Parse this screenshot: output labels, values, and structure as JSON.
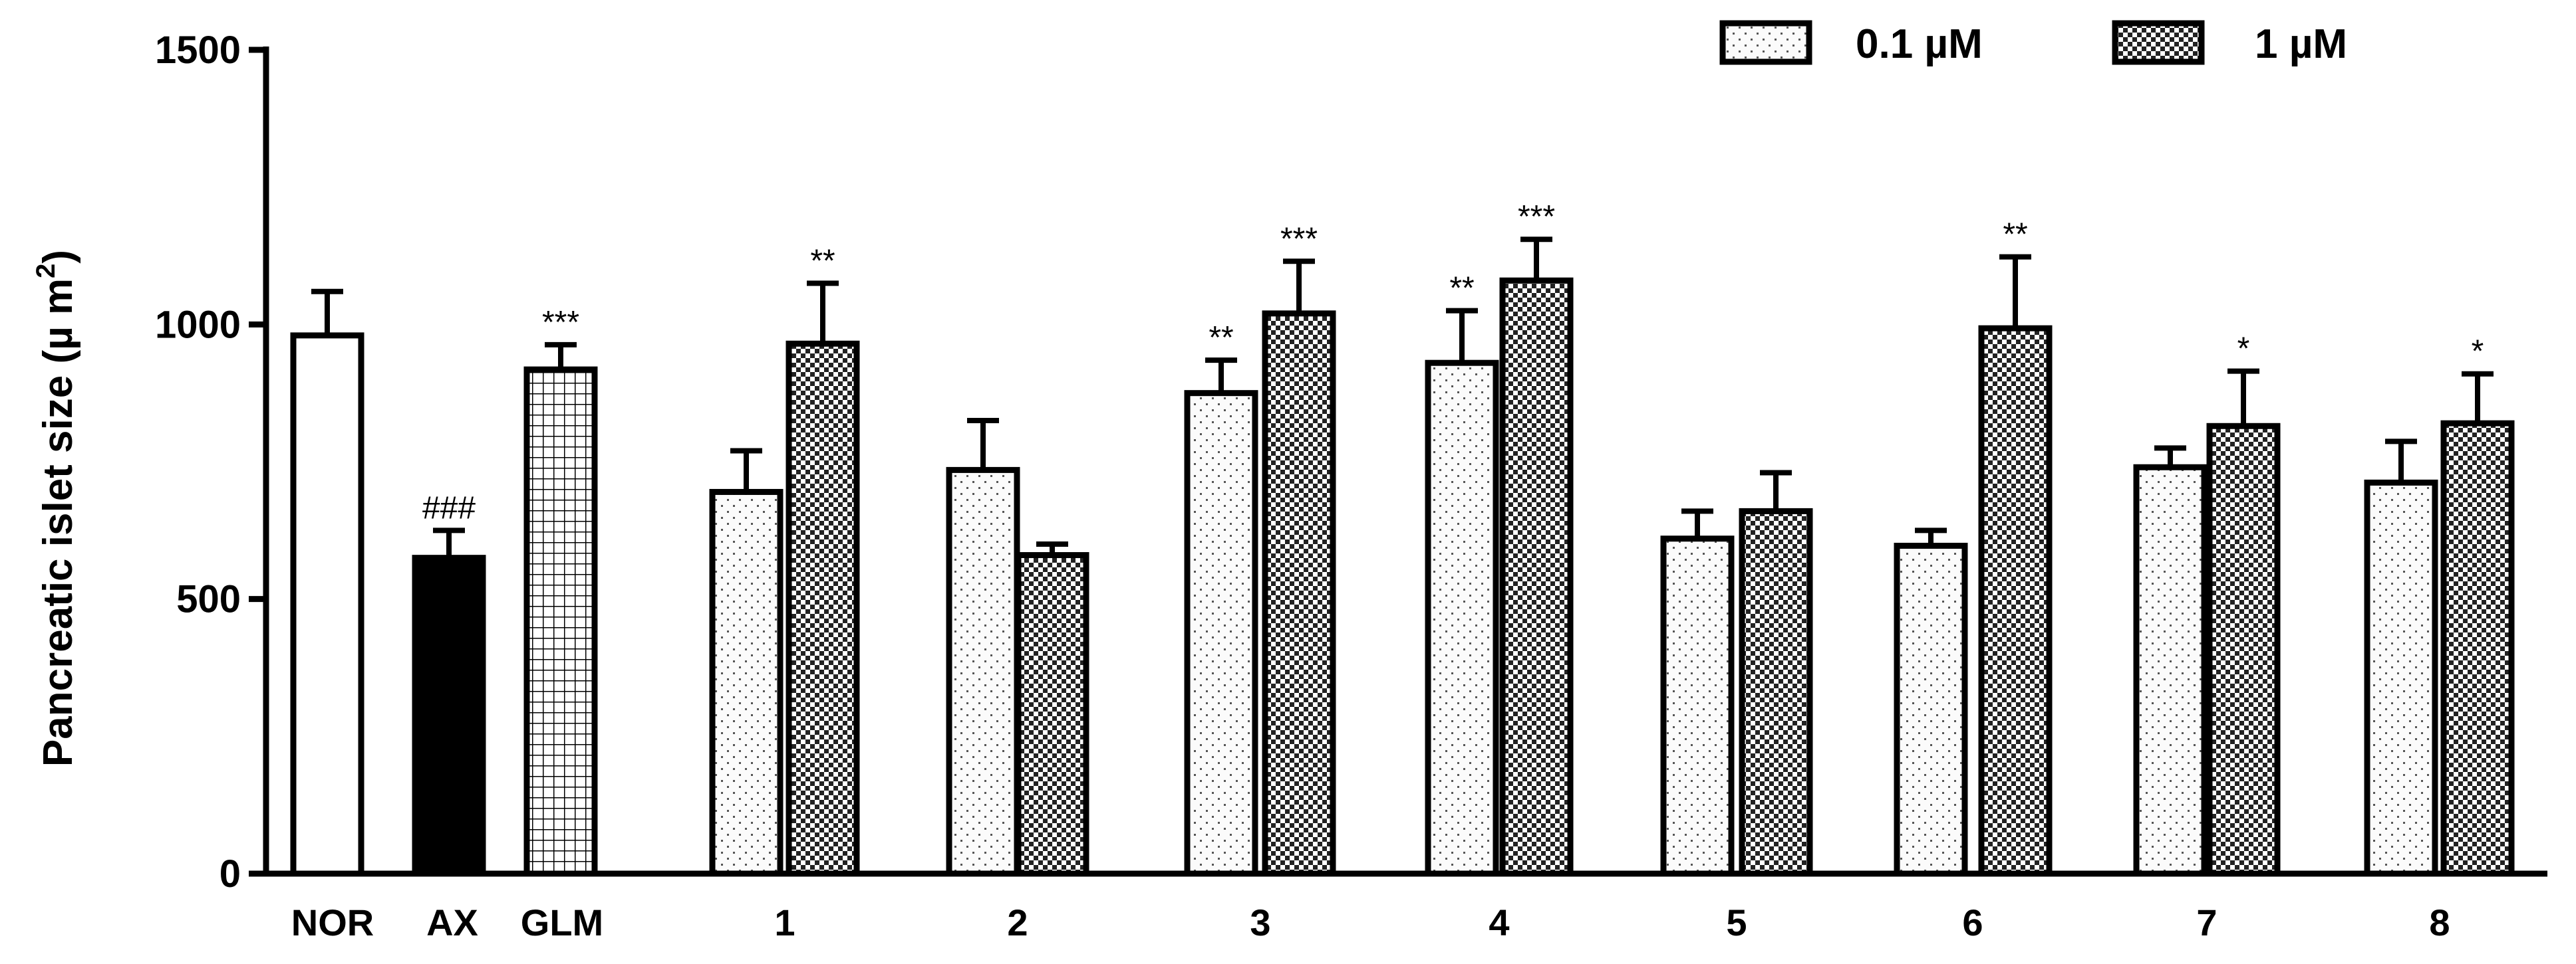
{
  "chart_data": {
    "type": "bar",
    "ylabel": "Pancreatic islet size (μm²)",
    "ylabel_parts": {
      "main": "Pancreatic islet size (µ m",
      "sup": "2",
      "close": ")"
    },
    "ylim": [
      0,
      1500
    ],
    "yticks": [
      "0",
      "500",
      "1000",
      "1500"
    ],
    "legend_position": "top-right",
    "series": [
      {
        "name": "0.1 µM",
        "pattern": "dots"
      },
      {
        "name": "1 µM",
        "pattern": "checker"
      }
    ],
    "groups": [
      {
        "label": "NOR",
        "bars": [
          {
            "pattern": "white",
            "value": 980,
            "error": 80,
            "sig": ""
          }
        ]
      },
      {
        "label": "AX",
        "bars": [
          {
            "pattern": "black",
            "value": 575,
            "error": 50,
            "sig": "###"
          }
        ]
      },
      {
        "label": "GLM",
        "bars": [
          {
            "pattern": "grid",
            "value": 918,
            "error": 45,
            "sig": "***"
          }
        ]
      },
      {
        "label": "1",
        "bars": [
          {
            "pattern": "dots",
            "value": 695,
            "error": 75,
            "sig": ""
          },
          {
            "pattern": "checker",
            "value": 965,
            "error": 110,
            "sig": "**"
          }
        ]
      },
      {
        "label": "2",
        "bars": [
          {
            "pattern": "dots",
            "value": 735,
            "error": 90,
            "sig": ""
          },
          {
            "pattern": "checker",
            "value": 580,
            "error": 20,
            "sig": ""
          }
        ]
      },
      {
        "label": "3",
        "bars": [
          {
            "pattern": "dots",
            "value": 875,
            "error": 60,
            "sig": "**"
          },
          {
            "pattern": "checker",
            "value": 1020,
            "error": 95,
            "sig": "***"
          }
        ]
      },
      {
        "label": "4",
        "bars": [
          {
            "pattern": "dots",
            "value": 930,
            "error": 95,
            "sig": "**"
          },
          {
            "pattern": "checker",
            "value": 1080,
            "error": 75,
            "sig": "***"
          }
        ]
      },
      {
        "label": "5",
        "bars": [
          {
            "pattern": "dots",
            "value": 610,
            "error": 50,
            "sig": ""
          },
          {
            "pattern": "checker",
            "value": 660,
            "error": 70,
            "sig": ""
          }
        ]
      },
      {
        "label": "6",
        "bars": [
          {
            "pattern": "dots",
            "value": 597,
            "error": 28,
            "sig": ""
          },
          {
            "pattern": "checker",
            "value": 993,
            "error": 130,
            "sig": "**"
          }
        ]
      },
      {
        "label": "7",
        "bars": [
          {
            "pattern": "dots",
            "value": 740,
            "error": 35,
            "sig": ""
          },
          {
            "pattern": "checker",
            "value": 815,
            "error": 100,
            "sig": "*"
          }
        ]
      },
      {
        "label": "8",
        "bars": [
          {
            "pattern": "dots",
            "value": 712,
            "error": 75,
            "sig": ""
          },
          {
            "pattern": "checker",
            "value": 820,
            "error": 90,
            "sig": "*"
          }
        ]
      }
    ]
  }
}
